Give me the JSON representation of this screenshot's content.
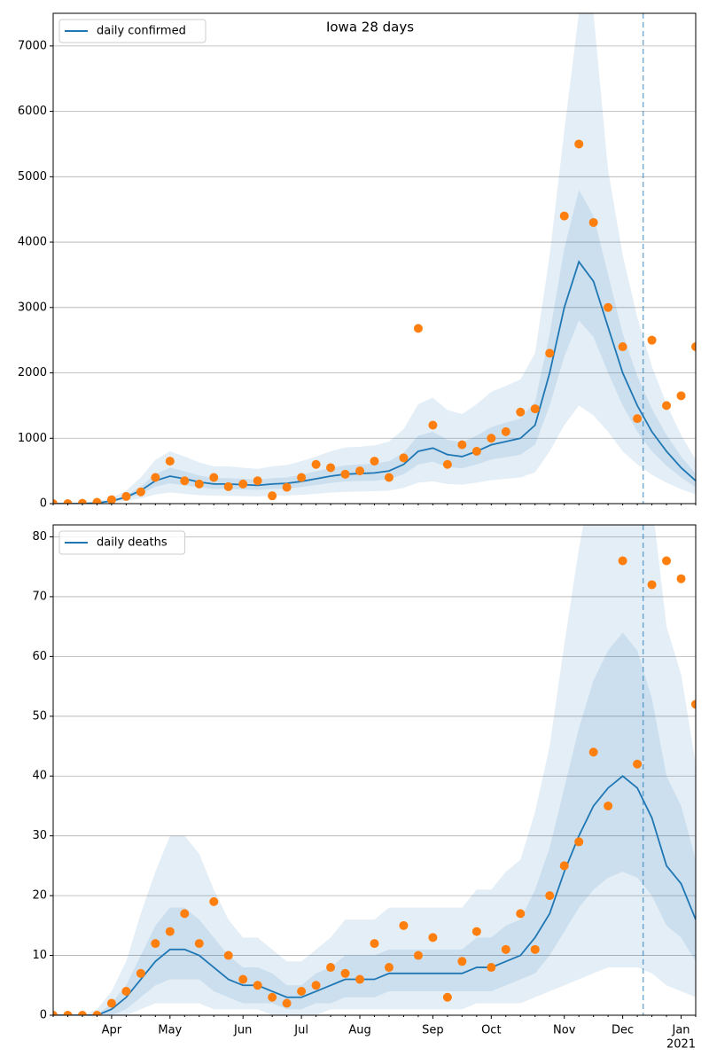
{
  "chart_data": [
    {
      "type": "line",
      "title": "Iowa 28 days",
      "categories": [
        null,
        null,
        null,
        null,
        null,
        null,
        null,
        null,
        null,
        null,
        null,
        null,
        null,
        null,
        null,
        null,
        null,
        null,
        null,
        null,
        null,
        null,
        null,
        null,
        null,
        null,
        null,
        null,
        null,
        null,
        null,
        null,
        null,
        null,
        null,
        null,
        null,
        null,
        null,
        null,
        null,
        null,
        null,
        null,
        null
      ],
      "series": [
        {
          "name": "daily confirmed",
          "color": "#1f77b4",
          "values": [
            0,
            0,
            2,
            10,
            40,
            100,
            200,
            350,
            420,
            380,
            330,
            300,
            300,
            290,
            280,
            300,
            310,
            340,
            380,
            420,
            450,
            460,
            470,
            500,
            600,
            800,
            850,
            750,
            720,
            800,
            900,
            950,
            1000,
            1200,
            2000,
            3000,
            3700,
            3400,
            2700,
            2000,
            1500,
            1100,
            800,
            550,
            350
          ]
        }
      ],
      "points": {
        "color": "#ff7f0e",
        "values": [
          0,
          0,
          5,
          20,
          60,
          110,
          180,
          400,
          650,
          350,
          300,
          400,
          260,
          300,
          350,
          120,
          250,
          400,
          600,
          550,
          450,
          500,
          650,
          400,
          700,
          2680,
          1200,
          600,
          900,
          800,
          1000,
          1100,
          1400,
          1450,
          2300,
          4400,
          5500,
          4300,
          3000,
          2400,
          1300,
          2500,
          1500,
          1650,
          2400
        ]
      },
      "bands": [
        {
          "lower": [
            0,
            0,
            0,
            3,
            15,
            40,
            80,
            140,
            170,
            150,
            130,
            120,
            120,
            115,
            110,
            120,
            125,
            135,
            150,
            170,
            180,
            185,
            190,
            200,
            240,
            320,
            340,
            300,
            290,
            320,
            360,
            380,
            400,
            480,
            800,
            1200,
            1500,
            1350,
            1100,
            800,
            600,
            440,
            320,
            220,
            140
          ],
          "upper": [
            0,
            2,
            6,
            25,
            90,
            200,
            400,
            670,
            800,
            720,
            630,
            570,
            570,
            550,
            530,
            570,
            590,
            650,
            720,
            800,
            860,
            870,
            890,
            950,
            1140,
            1520,
            1620,
            1430,
            1370,
            1520,
            1710,
            1800,
            1900,
            2300,
            3800,
            5700,
            7500,
            7500,
            5100,
            3800,
            2850,
            2100,
            1520,
            1050,
            670
          ]
        },
        {
          "lower": [
            0,
            0,
            1,
            7,
            30,
            75,
            150,
            260,
            310,
            280,
            250,
            225,
            225,
            215,
            210,
            225,
            230,
            255,
            285,
            315,
            340,
            345,
            350,
            375,
            450,
            600,
            640,
            560,
            540,
            600,
            675,
            710,
            750,
            900,
            1500,
            2250,
            2800,
            2550,
            2000,
            1500,
            1100,
            800,
            580,
            400,
            250
          ],
          "upper": [
            0,
            0,
            3,
            13,
            52,
            130,
            260,
            455,
            550,
            495,
            430,
            390,
            390,
            380,
            365,
            390,
            400,
            440,
            495,
            545,
            585,
            600,
            610,
            650,
            780,
            1040,
            1100,
            975,
            940,
            1040,
            1170,
            1240,
            1300,
            1560,
            2600,
            3900,
            4800,
            4400,
            3500,
            2600,
            1950,
            1450,
            1050,
            720,
            460
          ]
        }
      ],
      "vline_index": 40.4,
      "ylim": [
        0,
        7500
      ],
      "yticks": [
        0,
        1000,
        2000,
        3000,
        4000,
        5000,
        6000,
        7000
      ],
      "grid": true,
      "legend": "upper left"
    },
    {
      "type": "line",
      "categories": [
        null,
        null,
        null,
        null,
        "Apr",
        null,
        null,
        null,
        "May",
        null,
        null,
        null,
        null,
        "Jun",
        null,
        null,
        null,
        "Jul",
        null,
        null,
        null,
        "Aug",
        null,
        null,
        null,
        null,
        "Sep",
        null,
        null,
        null,
        "Oct",
        null,
        null,
        null,
        null,
        "Nov",
        null,
        null,
        null,
        "Dec",
        null,
        null,
        null,
        "Jan",
        null
      ],
      "year_label": "2021",
      "series": [
        {
          "name": "daily deaths",
          "color": "#1f77b4",
          "values": [
            0,
            0,
            0,
            0,
            1,
            3,
            6,
            9,
            11,
            11,
            10,
            8,
            6,
            5,
            5,
            4,
            3,
            3,
            4,
            5,
            6,
            6,
            6,
            7,
            7,
            7,
            7,
            7,
            7,
            8,
            8,
            9,
            10,
            13,
            17,
            24,
            30,
            35,
            38,
            40,
            38,
            33,
            25,
            22,
            16
          ]
        }
      ],
      "points": {
        "color": "#ff7f0e",
        "values": [
          0,
          0,
          0,
          0,
          2,
          4,
          7,
          12,
          14,
          17,
          12,
          19,
          10,
          6,
          5,
          3,
          2,
          4,
          5,
          8,
          7,
          6,
          12,
          8,
          15,
          10,
          13,
          3,
          9,
          14,
          8,
          11,
          17,
          11,
          20,
          25,
          29,
          44,
          35,
          76,
          42,
          72,
          76,
          73,
          52
        ]
      },
      "bands": [
        {
          "lower": [
            0,
            0,
            0,
            0,
            0,
            0,
            1,
            2,
            2,
            2,
            2,
            1,
            1,
            1,
            1,
            0,
            0,
            0,
            0,
            1,
            1,
            1,
            1,
            1,
            1,
            1,
            1,
            1,
            1,
            2,
            2,
            2,
            2,
            3,
            4,
            5,
            6,
            7,
            8,
            8,
            8,
            7,
            5,
            4,
            3
          ],
          "upper": [
            0,
            0,
            0,
            1,
            4,
            9,
            17,
            24,
            30,
            30,
            27,
            21,
            16,
            13,
            13,
            11,
            9,
            9,
            11,
            13,
            16,
            16,
            16,
            18,
            18,
            18,
            18,
            18,
            18,
            21,
            21,
            24,
            26,
            34,
            45,
            62,
            78,
            91,
            99,
            104,
            99,
            86,
            65,
            57,
            42
          ]
        },
        {
          "lower": [
            0,
            0,
            0,
            0,
            0,
            1,
            3,
            5,
            6,
            6,
            6,
            4,
            3,
            2,
            2,
            2,
            1,
            1,
            2,
            2,
            3,
            3,
            3,
            4,
            4,
            4,
            4,
            4,
            4,
            4,
            4,
            5,
            6,
            7,
            10,
            14,
            18,
            21,
            23,
            24,
            23,
            20,
            15,
            13,
            9
          ],
          "upper": [
            0,
            0,
            0,
            0,
            2,
            5,
            10,
            15,
            18,
            18,
            16,
            13,
            10,
            8,
            8,
            7,
            5,
            5,
            7,
            8,
            10,
            10,
            10,
            11,
            11,
            11,
            11,
            11,
            11,
            13,
            13,
            15,
            16,
            21,
            28,
            38,
            48,
            56,
            61,
            64,
            61,
            53,
            40,
            35,
            26
          ]
        }
      ],
      "vline_index": 40.4,
      "ylim": [
        0,
        82
      ],
      "yticks": [
        0,
        10,
        20,
        30,
        40,
        50,
        60,
        70,
        80
      ],
      "grid": true,
      "legend": "upper left"
    }
  ]
}
